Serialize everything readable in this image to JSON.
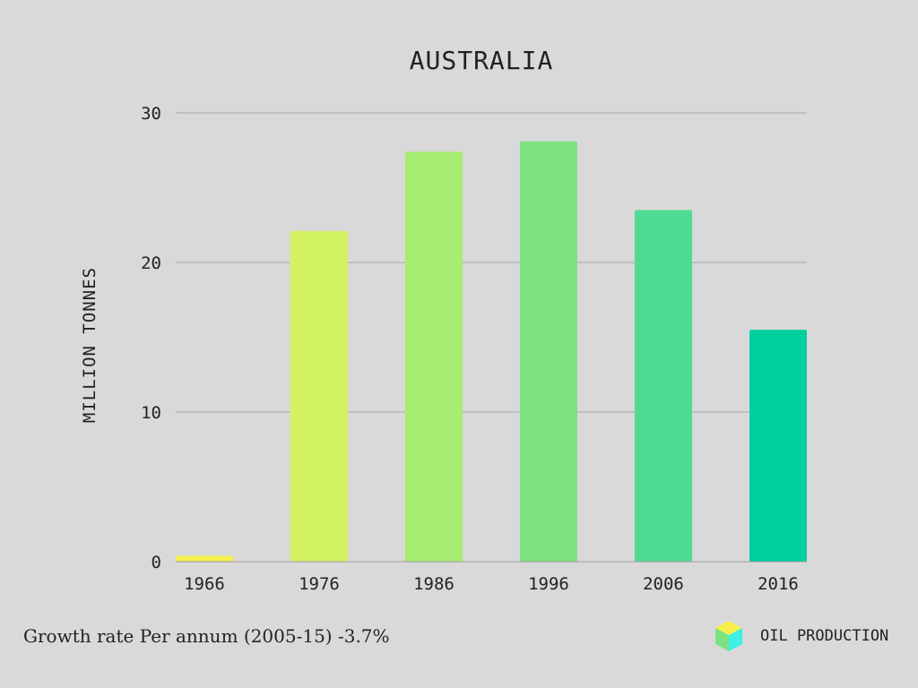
{
  "chart_data": {
    "type": "bar",
    "title": "AUSTRALIA",
    "ylabel": "MILLION TONNES",
    "xlabel": "",
    "categories": [
      "1966",
      "1976",
      "1986",
      "1996",
      "2006",
      "2016"
    ],
    "values": [
      0.4,
      22.1,
      27.4,
      28.1,
      23.5,
      15.5
    ],
    "bar_colors": [
      "#f6f04f",
      "#d3f261",
      "#a6ec70",
      "#7de380",
      "#4fdb93",
      "#00cfa0"
    ],
    "ylim": [
      0,
      30
    ],
    "yticks": [
      0,
      10,
      20,
      30
    ],
    "grid": true
  },
  "footer": {
    "growth_text": "Growth rate Per annum (2005-15) -3.7%"
  },
  "legend": {
    "label": "OIL PRODUCTION",
    "icon": "cube-icon",
    "icon_colors": {
      "top": "#f6f04f",
      "left": "#7de380",
      "right": "#3ef0e6"
    }
  }
}
